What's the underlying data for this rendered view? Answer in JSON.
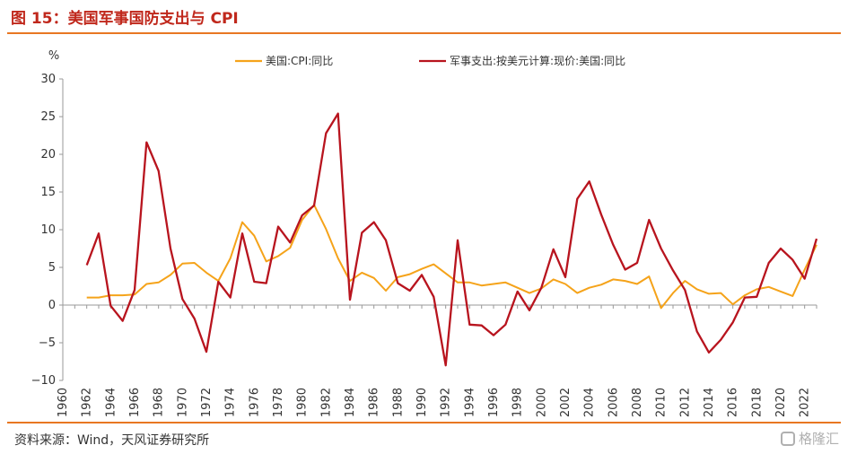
{
  "header": {
    "title": "图 15：美国军事国防支出与 CPI"
  },
  "footer": {
    "source": "资料来源：Wind，天风证券研究所",
    "watermark": "格隆汇"
  },
  "chart_data": {
    "type": "line",
    "unit_label": "%",
    "ylim": [
      -10,
      30
    ],
    "yticks": [
      30,
      25,
      20,
      15,
      10,
      5,
      0,
      -5,
      -10
    ],
    "xlim": [
      1960,
      2023
    ],
    "xticks": [
      1960,
      1962,
      1964,
      1966,
      1968,
      1970,
      1972,
      1974,
      1976,
      1978,
      1980,
      1982,
      1984,
      1986,
      1988,
      1990,
      1992,
      1994,
      1996,
      1998,
      2000,
      2002,
      2004,
      2006,
      2008,
      2010,
      2012,
      2014,
      2016,
      2018,
      2020,
      2022
    ],
    "legend_position": "top",
    "grid": false,
    "series": [
      {
        "name": "美国:CPI:同比",
        "color": "#f5a31a",
        "x": [
          1962,
          1963,
          1964,
          1965,
          1966,
          1967,
          1968,
          1969,
          1970,
          1971,
          1972,
          1973,
          1974,
          1975,
          1976,
          1977,
          1978,
          1979,
          1980,
          1981,
          1982,
          1983,
          1984,
          1985,
          1986,
          1987,
          1988,
          1989,
          1990,
          1991,
          1992,
          1993,
          1994,
          1995,
          1996,
          1997,
          1998,
          1999,
          2000,
          2001,
          2002,
          2003,
          2004,
          2005,
          2006,
          2007,
          2008,
          2009,
          2010,
          2011,
          2012,
          2013,
          2014,
          2015,
          2016,
          2017,
          2018,
          2019,
          2020,
          2021,
          2022,
          2023
        ],
        "values": [
          1.0,
          1.0,
          1.3,
          1.3,
          1.4,
          2.8,
          3.0,
          4.0,
          5.5,
          5.6,
          4.3,
          3.2,
          6.2,
          11.0,
          9.2,
          5.8,
          6.5,
          7.6,
          11.3,
          13.3,
          10.1,
          6.2,
          3.2,
          4.3,
          3.6,
          1.9,
          3.7,
          4.1,
          4.8,
          5.4,
          4.2,
          3.0,
          3.0,
          2.6,
          2.8,
          3.0,
          2.3,
          1.6,
          2.2,
          3.4,
          2.8,
          1.6,
          2.3,
          2.7,
          3.4,
          3.2,
          2.8,
          3.8,
          -0.4,
          1.6,
          3.2,
          2.1,
          1.5,
          1.6,
          0.1,
          1.3,
          2.1,
          2.4,
          1.8,
          1.2,
          4.7,
          8.0
        ]
      },
      {
        "name": "军事支出:按美元计算:现价:美国:同比",
        "color": "#b8141e",
        "x": [
          1962,
          1963,
          1964,
          1965,
          1966,
          1967,
          1968,
          1969,
          1970,
          1971,
          1972,
          1973,
          1974,
          1975,
          1976,
          1977,
          1978,
          1979,
          1980,
          1981,
          1982,
          1983,
          1984,
          1985,
          1986,
          1987,
          1988,
          1989,
          1990,
          1991,
          1992,
          1993,
          1994,
          1995,
          1996,
          1997,
          1998,
          1999,
          2000,
          2001,
          2002,
          2003,
          2004,
          2005,
          2006,
          2007,
          2008,
          2009,
          2010,
          2011,
          2012,
          2013,
          2014,
          2015,
          2016,
          2017,
          2018,
          2019,
          2020,
          2021,
          2022,
          2023
        ],
        "values": [
          5.3,
          9.5,
          -0.1,
          -2.1,
          2.0,
          21.6,
          17.8,
          7.5,
          0.8,
          -1.8,
          -6.2,
          3.1,
          1.0,
          9.5,
          3.1,
          2.9,
          10.4,
          8.3,
          11.9,
          13.2,
          22.8,
          25.4,
          0.7,
          9.6,
          11.0,
          8.6,
          2.9,
          1.9,
          4.0,
          1.1,
          -8.0,
          8.6,
          -2.6,
          -2.7,
          -4.0,
          -2.6,
          1.8,
          -0.7,
          2.3,
          7.4,
          3.7,
          14.1,
          16.4,
          12.0,
          8.0,
          4.7,
          5.6,
          11.3,
          7.5,
          4.6,
          2.0,
          -3.5,
          -6.3,
          -4.6,
          -2.3,
          1.0,
          1.1,
          5.6,
          7.5,
          6.0,
          3.5,
          8.8
        ]
      }
    ]
  }
}
